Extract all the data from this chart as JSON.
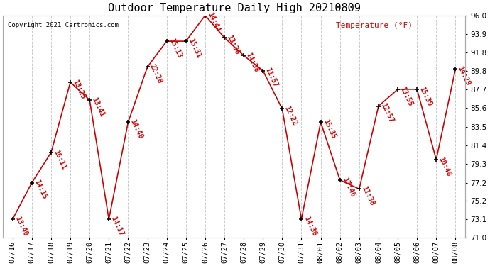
{
  "title": "Outdoor Temperature Daily High 20210809",
  "copyright": "Copyright 2021 Cartronics.com",
  "temp_label": "Temperature (°F)",
  "background_color": "#ffffff",
  "grid_color": "#cccccc",
  "line_color": "#cc0000",
  "point_color": "#000000",
  "label_color": "#cc0000",
  "title_color": "#000000",
  "copyright_color": "#000000",
  "ylabel_color": "#cc0000",
  "dates": [
    "07/16",
    "07/17",
    "07/18",
    "07/19",
    "07/20",
    "07/21",
    "07/22",
    "07/23",
    "07/24",
    "07/25",
    "07/26",
    "07/27",
    "07/28",
    "07/29",
    "07/30",
    "07/31",
    "08/01",
    "08/02",
    "08/03",
    "08/04",
    "08/05",
    "08/06",
    "08/07",
    "08/08"
  ],
  "values": [
    73.1,
    77.2,
    80.6,
    88.5,
    86.5,
    73.1,
    84.0,
    90.2,
    93.1,
    93.1,
    96.0,
    93.5,
    91.5,
    89.8,
    85.5,
    73.1,
    84.0,
    77.5,
    76.5,
    85.8,
    87.7,
    87.7,
    79.8,
    90.0
  ],
  "labels": [
    "13:40",
    "14:15",
    "16:11",
    "13:25",
    "13:41",
    "14:17",
    "14:40",
    "22:28",
    "15:13",
    "15:31",
    "14:44",
    "13:36",
    "14:38",
    "11:57",
    "12:22",
    "14:36",
    "15:35",
    "17:46",
    "11:38",
    "12:57",
    "13:55",
    "15:39",
    "10:48",
    "14:29"
  ],
  "ylim": [
    71.0,
    96.0
  ],
  "yticks": [
    71.0,
    73.1,
    75.2,
    77.2,
    79.3,
    81.4,
    83.5,
    85.6,
    87.7,
    89.8,
    91.8,
    93.9,
    96.0
  ],
  "label_rotation": -65,
  "label_fontsize": 7.0,
  "tick_fontsize": 7.5,
  "title_fontsize": 11
}
